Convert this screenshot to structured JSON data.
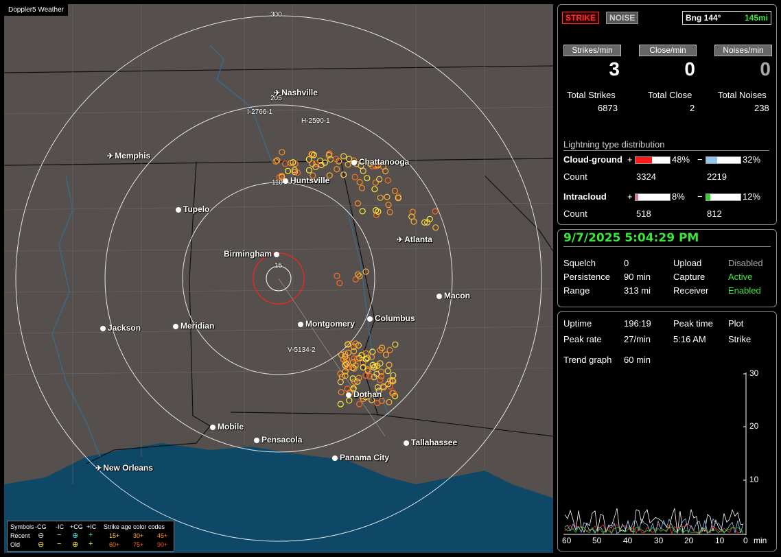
{
  "app": {
    "title": "Doppler5 Weather"
  },
  "map": {
    "ring_labels": {
      "r300": "300",
      "r205": "205",
      "r110": "110",
      "r15": "15"
    },
    "cities": [
      {
        "name": "Nashville",
        "airport": true
      },
      {
        "name": "Memphis",
        "airport": true
      },
      {
        "name": "Chattanooga",
        "airport": false
      },
      {
        "name": "Huntsville",
        "airport": false
      },
      {
        "name": "Tupelo",
        "airport": false
      },
      {
        "name": "Atlanta",
        "airport": true
      },
      {
        "name": "Birmingham",
        "airport": false
      },
      {
        "name": "Macon",
        "airport": false
      },
      {
        "name": "Columbus",
        "airport": false
      },
      {
        "name": "Jackson",
        "airport": false
      },
      {
        "name": "Meridian",
        "airport": false
      },
      {
        "name": "Montgomery",
        "airport": false
      },
      {
        "name": "Dothan",
        "airport": false
      },
      {
        "name": "Mobile",
        "airport": false
      },
      {
        "name": "Pensacola",
        "airport": false
      },
      {
        "name": "Tallahassee",
        "airport": false
      },
      {
        "name": "Panama City",
        "airport": false
      },
      {
        "name": "New Orleans",
        "airport": true
      }
    ],
    "route_labels": [
      "I-2766-1",
      "H-2590-1",
      "V-5134-2"
    ],
    "legend": {
      "symbols_label": "Symbols",
      "neg_cg": "-CG",
      "neg_ic": "-IC",
      "pos_cg": "+CG",
      "pos_ic": "+IC",
      "age_title": "Strike age color codes",
      "recent": "Recent",
      "old": "Old",
      "ages_recent": [
        "15+",
        "30+",
        "45+"
      ],
      "ages_old": [
        "60+",
        "75+",
        "90+"
      ]
    }
  },
  "top": {
    "strike_btn": "STRIKE",
    "noise_btn": "NOISE",
    "bearing": "Bng 144°",
    "distance": "145mi",
    "strikes_per_min_label": "Strikes/min",
    "close_per_min_label": "Close/min",
    "noises_per_min_label": "Noises/min",
    "strikes_per_min": "3",
    "close_per_min": "0",
    "noises_per_min": "0",
    "total_strikes_label": "Total Strikes",
    "total_close_label": "Total Close",
    "total_noises_label": "Total Noises",
    "total_strikes": "6873",
    "total_close": "2",
    "total_noises": "238",
    "dist_title": "Lightning type distribution",
    "cg_label": "Cloud-ground",
    "ic_label": "Intracloud",
    "count_label": "Count",
    "plus": "+",
    "minus": "−",
    "cg_pos_pct": "48%",
    "cg_neg_pct": "32%",
    "ic_pos_pct": "8%",
    "ic_neg_pct": "12%",
    "cg_pos_frac": 0.48,
    "cg_neg_frac": 0.32,
    "ic_pos_frac": 0.08,
    "ic_neg_frac": 0.12,
    "cg_pos_count": "3324",
    "cg_neg_count": "2219",
    "ic_pos_count": "518",
    "ic_neg_count": "812"
  },
  "status": {
    "datetime": "9/7/2025 5:04:29 PM",
    "squelch_label": "Squelch",
    "squelch": "0",
    "persistence_label": "Persistence",
    "persistence": "90 min",
    "range_label": "Range",
    "range": "313 mi",
    "upload_label": "Upload",
    "upload": "Disabled",
    "capture_label": "Capture",
    "capture": "Active",
    "receiver_label": "Receiver",
    "receiver": "Enabled"
  },
  "trend": {
    "uptime_label": "Uptime",
    "uptime": "196:19",
    "peak_time_label": "Peak time",
    "peak_time": "5:16 AM",
    "plot_label": "Plot",
    "plot": "Strike",
    "peak_rate_label": "Peak rate",
    "peak_rate": "27/min",
    "trend_label": "Trend graph",
    "trend": "60 min",
    "y_ticks": [
      "30",
      "20",
      "10"
    ],
    "x_ticks": [
      "60",
      "50",
      "40",
      "30",
      "20",
      "10",
      "0"
    ],
    "x_unit": "min"
  },
  "colors": {
    "accent_green": "#39e639",
    "strike_red": "#ff3030",
    "cg_pos": "#ff1a1a",
    "cg_neg": "#8fc6ef",
    "ic_pos": "#e36ea9",
    "ic_neg": "#2fd12f"
  }
}
